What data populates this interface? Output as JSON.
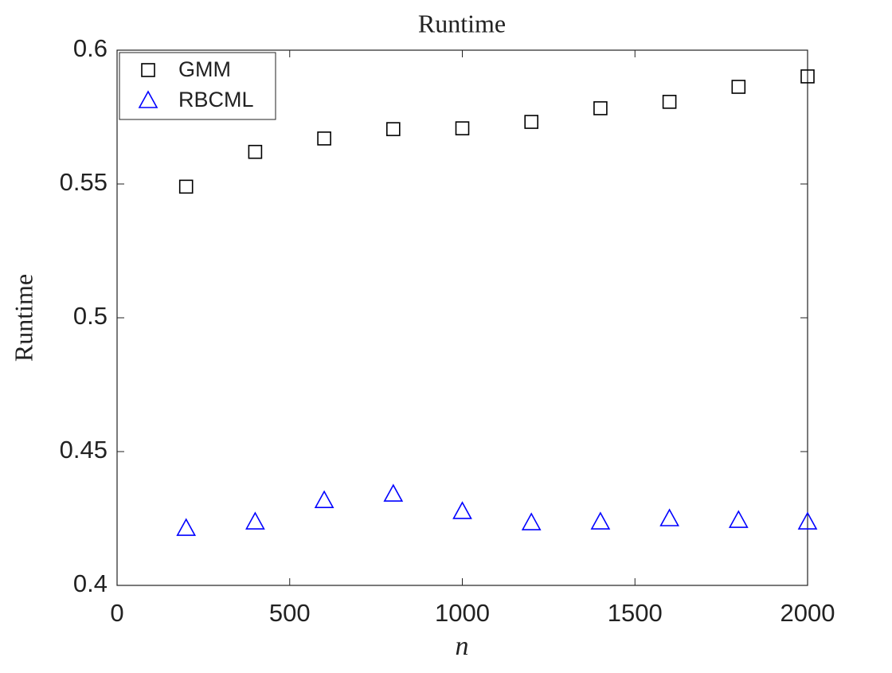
{
  "chart_data": {
    "type": "scatter",
    "title": "Runtime",
    "x_label": "n",
    "y_label": "Runtime",
    "x": [
      200,
      400,
      600,
      800,
      1000,
      1200,
      1400,
      1600,
      1800,
      2000
    ],
    "series": [
      {
        "name": "GMM",
        "color": "#000000",
        "marker": "square",
        "values": [
          0.549,
          0.562,
          0.567,
          0.5705,
          0.5708,
          0.5732,
          0.5783,
          0.5807,
          0.5863,
          0.5902
        ]
      },
      {
        "name": "RBCML",
        "color": "#0000ff",
        "marker": "triangle",
        "values": [
          0.4214,
          0.4238,
          0.4318,
          0.4342,
          0.4277,
          0.4235,
          0.4238,
          0.425,
          0.4244,
          0.4238
        ]
      }
    ],
    "xlim": [
      0,
      2000
    ],
    "xticks": [
      0,
      500,
      1000,
      1500,
      2000
    ],
    "ylim": [
      0.4,
      0.6
    ],
    "yticks": [
      0.4,
      0.45,
      0.5,
      0.55,
      0.6
    ],
    "grid": false,
    "legend_position": "upper-left"
  }
}
